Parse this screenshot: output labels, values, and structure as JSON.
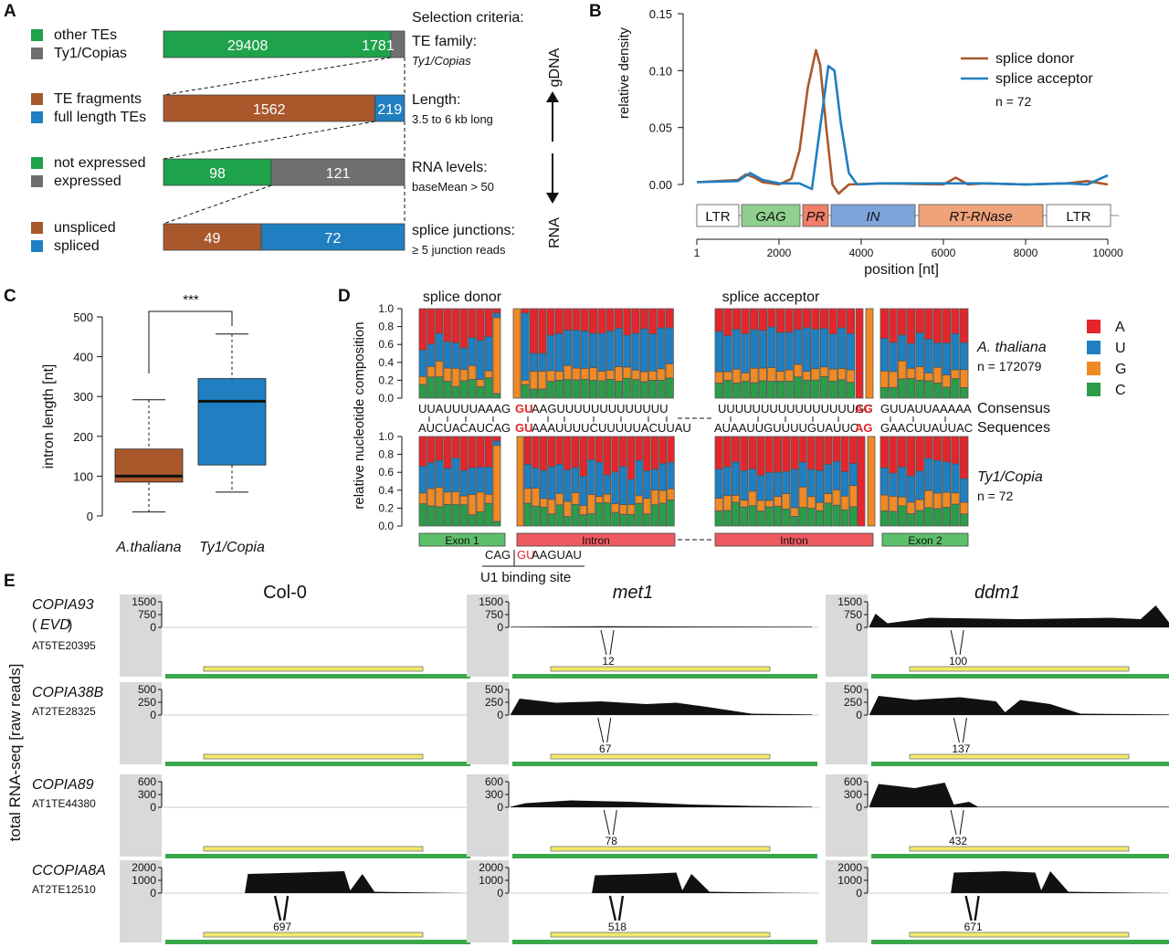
{
  "colors": {
    "green": "#1ea24a",
    "gray": "#6f6f70",
    "brown": "#a9582c",
    "blue": "#1f7fc1",
    "red": "#e4262c",
    "orange": "#f08a24",
    "nt_green": "#2a9d48",
    "gene_green": "#3aa84a",
    "gene_yellow": "#f2e86a"
  },
  "panel_labels": {
    "a": "A",
    "b": "B",
    "c": "C",
    "d": "D",
    "e": "E"
  },
  "panel_a": {
    "bars": [
      {
        "legend": [
          "other TEs",
          "Ty1/Copias"
        ],
        "values": [
          29408,
          1781
        ],
        "labels": [
          "29408",
          "1781"
        ],
        "criteria_title": "Selection criteria:",
        "criteria_name": "TE family:",
        "criteria_value": "Ty1/Copias"
      },
      {
        "legend": [
          "TE fragments",
          "full length TEs"
        ],
        "values": [
          1562,
          219
        ],
        "labels": [
          "1562",
          "219"
        ],
        "criteria_name": "Length:",
        "criteria_value": "3.5 to 6 kb long"
      },
      {
        "legend": [
          "not expressed",
          "expressed"
        ],
        "values": [
          98,
          121
        ],
        "labels": [
          "98",
          "121"
        ],
        "criteria_name": "RNA levels:",
        "criteria_value": "baseMean > 50"
      },
      {
        "legend": [
          "unspliced",
          "spliced"
        ],
        "values": [
          49,
          72
        ],
        "labels": [
          "49",
          "72"
        ],
        "criteria_name": "splice junctions:",
        "criteria_value": "≥ 5 junction reads"
      }
    ],
    "arrow_top": "gDNA",
    "arrow_bottom": "RNA"
  },
  "chart_data": [
    {
      "type": "line",
      "ylabel": "relative density",
      "xlabel": "position [nt]",
      "xlim": [
        1,
        10000
      ],
      "ylim": [
        0,
        0.15
      ],
      "yticks": [
        "0.00",
        "0.05",
        "0.10",
        "0.15"
      ],
      "xticks": [
        "1",
        "2000",
        "4000",
        "6000",
        "8000",
        "10000"
      ],
      "legend_note": "n = 72",
      "series": [
        {
          "name": "splice donor",
          "x": [
            1,
            1000,
            1200,
            1400,
            1600,
            2000,
            2300,
            2500,
            2700,
            2900,
            3000,
            3150,
            3300,
            3450,
            3700,
            4500,
            6000,
            6300,
            6600,
            7000,
            8000,
            9000,
            9500,
            10000
          ],
          "y": [
            0.002,
            0.004,
            0.009,
            0.006,
            0.002,
            0.0,
            0.005,
            0.03,
            0.085,
            0.118,
            0.105,
            0.05,
            0.0,
            -0.008,
            0.0,
            0.001,
            0.0,
            0.006,
            0.0,
            0.001,
            0.0,
            0.001,
            0.003,
            0.0
          ]
        },
        {
          "name": "splice acceptor",
          "x": [
            1,
            1000,
            1300,
            1600,
            2000,
            2500,
            2800,
            3000,
            3200,
            3350,
            3500,
            3700,
            3900,
            4500,
            6000,
            7000,
            8000,
            9000,
            9500,
            10000
          ],
          "y": [
            0.002,
            0.003,
            0.01,
            0.004,
            0.001,
            0.001,
            -0.004,
            0.05,
            0.104,
            0.1,
            0.055,
            0.01,
            0.0,
            0.001,
            0.001,
            0.001,
            0.0,
            0.001,
            0.0,
            0.008
          ]
        }
      ],
      "domains": [
        "LTR",
        "GAG",
        "PR",
        "IN",
        "RT-RNase",
        "LTR"
      ]
    },
    {
      "type": "box",
      "ylabel": "intron length [nt]",
      "categories": [
        "A.thaliana",
        "Ty1/Copia"
      ],
      "ylim": [
        0,
        500
      ],
      "yticks": [
        "0",
        "100",
        "200",
        "300",
        "400",
        "500"
      ],
      "boxes": [
        {
          "whisker_low": 10,
          "q1": 85,
          "median": 100,
          "q3": 168,
          "whisker_high": 292
        },
        {
          "whisker_low": 60,
          "q1": 128,
          "median": 288,
          "q3": 345,
          "whisker_high": 457
        }
      ],
      "significance": "***"
    },
    {
      "type": "bar",
      "title_donor": "splice donor",
      "title_acceptor": "splice acceptor",
      "ylabel": "relative nucleotide composition",
      "yticks": [
        "0.0",
        "0.2",
        "0.4",
        "0.6",
        "0.8",
        "1.0"
      ],
      "legend": [
        "A",
        "U",
        "G",
        "C"
      ],
      "group_top": "A. thaliana",
      "n_top": "n = 172079",
      "group_bottom": "Ty1/Copia",
      "n_bottom": "n = 72",
      "consensus_label_1": "Consensus",
      "consensus_label_2": "Sequences",
      "consensus_top": {
        "exon1": "UUAUUUUAAAG",
        "intron_start": "GU",
        "intron1": "AAGUUUUUUUUUUUUU",
        "intron2": "UUUUUUUUUUUUUUUUGC",
        "intron_end": "AG",
        "exon2": "GUUAUUAAAAA"
      },
      "consensus_bottom": {
        "exon1": "AUCUACAUCAG",
        "intron_start": "GU",
        "intron1": "AAAUUUUCUUUUUACUUAU",
        "intron2": "AUAAUUGUUUUGUAUUC",
        "intron_end": "AG",
        "exon2": "GAACUUAUUAC"
      },
      "segments": [
        "Exon 1",
        "Intron",
        "Intron",
        "Exon 2"
      ],
      "u1_seq_1": "CAG",
      "u1_seq_2": "GU",
      "u1_seq_3": "AAGUAU",
      "u1_label": "U1 binding site"
    }
  ],
  "panel_e": {
    "ylabel": "total RNA-seq [raw reads]",
    "columns": [
      "Col-0",
      "met1",
      "ddm1"
    ],
    "rows": [
      {
        "name": "COPIA93",
        "name2": "(EVD)",
        "id": "AT5TE20395",
        "ticks": [
          "1500",
          "750",
          "0"
        ],
        "junctions": [
          "",
          "12",
          "100"
        ]
      },
      {
        "name": "COPIA38B",
        "id": "AT2TE28325",
        "ticks": [
          "500",
          "250",
          "0"
        ],
        "junctions": [
          "",
          "67",
          "137"
        ]
      },
      {
        "name": "COPIA89",
        "id": "AT1TE44380",
        "ticks": [
          "600",
          "300",
          "0"
        ],
        "junctions": [
          "",
          "78",
          "432"
        ]
      },
      {
        "name": "CCOPIA8A",
        "id": "AT2TE12510",
        "ticks": [
          "2000",
          "1000",
          "0"
        ],
        "junctions": [
          "697",
          "518",
          "671"
        ]
      }
    ]
  }
}
